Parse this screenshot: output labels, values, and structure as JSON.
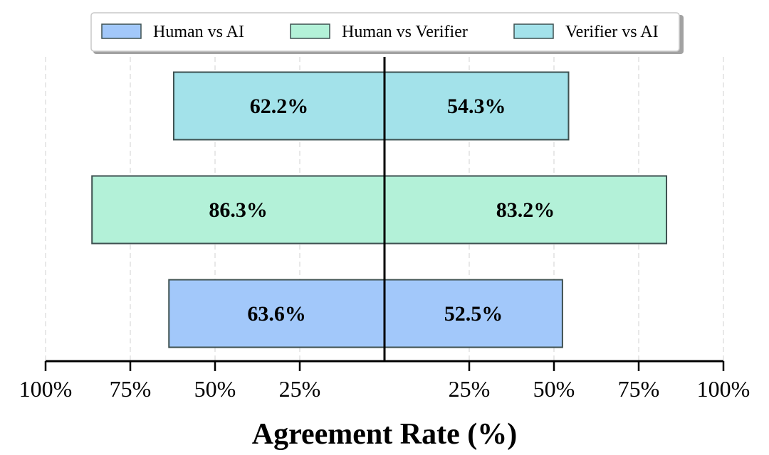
{
  "chart_data": {
    "type": "bar",
    "orientation": "horizontal-diverging",
    "title": "",
    "xlabel": "Agreement Rate (%)",
    "ylabel": "",
    "xlim": [
      -100,
      100
    ],
    "x_tick_values": [
      -100,
      -75,
      -50,
      -25,
      25,
      50,
      75,
      100
    ],
    "x_tick_labels": [
      "100%",
      "75%",
      "50%",
      "25%",
      "25%",
      "50%",
      "75%",
      "100%"
    ],
    "grid": "vertical dashed",
    "legend_position": "top-center",
    "series": [
      {
        "name": "Human vs AI",
        "color": "#a2c8fa",
        "left": 63.6,
        "right": 52.5,
        "left_label": "63.6%",
        "right_label": "52.5%"
      },
      {
        "name": "Human vs Verifier",
        "color": "#b3f1d8",
        "left": 86.3,
        "right": 83.2,
        "left_label": "86.3%",
        "right_label": "83.2%"
      },
      {
        "name": "Verifier vs AI",
        "color": "#a3e2ea",
        "left": 62.2,
        "right": 54.3,
        "left_label": "62.2%",
        "right_label": "54.3%"
      }
    ]
  }
}
